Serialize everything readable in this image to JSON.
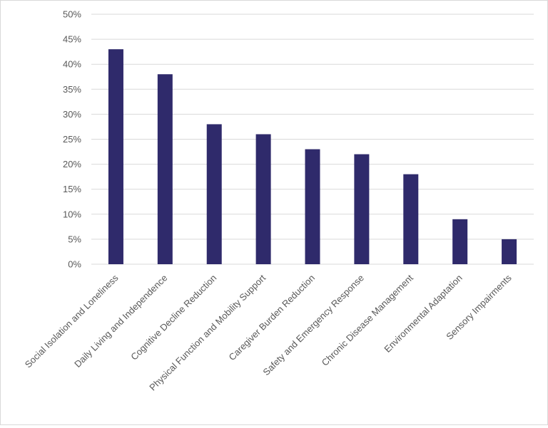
{
  "chart_data": {
    "type": "bar",
    "title": "",
    "xlabel": "",
    "ylabel": "",
    "ylim": [
      0,
      50
    ],
    "y_tick_step": 5,
    "y_tick_labels": [
      "0%",
      "5%",
      "10%",
      "15%",
      "20%",
      "25%",
      "30%",
      "35%",
      "40%",
      "45%",
      "50%"
    ],
    "grid": true,
    "bar_color": "#2f2a6b",
    "categories": [
      "Social Isolation and Loneliness",
      "Daily Living and Independence",
      "Cognitive Decline Reduction",
      "Physical Function and Mobility Support",
      "Caregiver Burden Reduction",
      "Safety and Emergency Response",
      "Chronic Disease Management",
      "Environmental Adaptation",
      "Sensory Impairments"
    ],
    "values": [
      43,
      38,
      28,
      26,
      23,
      22,
      18,
      9,
      5
    ],
    "value_unit": "%"
  }
}
